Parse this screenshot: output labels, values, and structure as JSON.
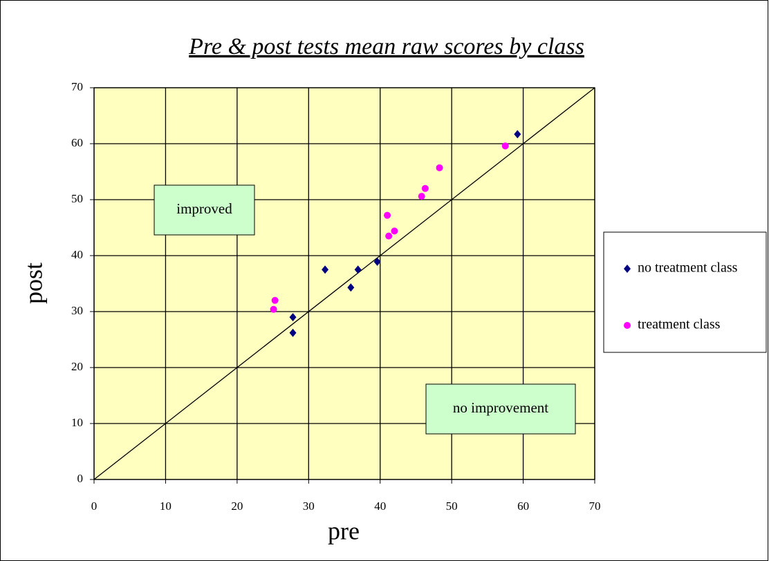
{
  "chart_data": {
    "type": "scatter",
    "title": "Pre & post tests mean raw scores by class",
    "x_label": "pre",
    "y_label": "post",
    "xlim": [
      0,
      70
    ],
    "xticks": [
      0,
      10,
      20,
      30,
      40,
      50,
      60,
      70
    ],
    "ylim": [
      0,
      70
    ],
    "yticks": [
      0,
      10,
      20,
      30,
      40,
      50,
      60,
      70
    ],
    "grid": true,
    "legend": "right",
    "annotations": [
      "improved",
      "no improvement"
    ],
    "series": [
      {
        "name": "no treatment class",
        "color": "#000080",
        "marker": "diamond",
        "x": [
          27.8,
          27.8,
          32.3,
          35.9,
          36.9,
          39.6,
          59.2
        ],
        "values": [
          29.0,
          26.2,
          37.5,
          34.3,
          37.5,
          38.9,
          61.7
        ]
      },
      {
        "name": "treatment class",
        "color": "#ff00ff",
        "marker": "circle",
        "x": [
          25.3,
          25.1,
          41.0,
          41.2,
          42.0,
          45.8,
          46.3,
          48.3,
          57.5
        ],
        "values": [
          32.0,
          30.4,
          47.2,
          43.5,
          44.4,
          50.6,
          52.0,
          55.7,
          59.6
        ]
      }
    ]
  }
}
